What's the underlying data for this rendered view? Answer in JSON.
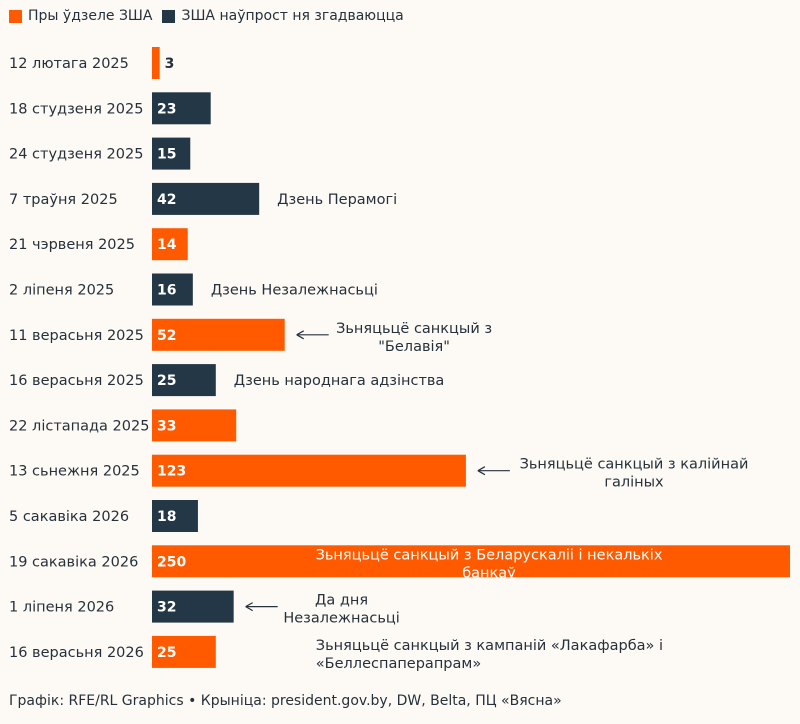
{
  "legend": [
    {
      "label": "Пры ўдзеле ЗША",
      "color": "#ff5a00"
    },
    {
      "label": "ЗША наўпрост ня згадваюцца",
      "color": "#243746"
    }
  ],
  "footer": "Графік: RFE/RL Graphics • Крыніца: president.gov.by, DW, Belta, ПЦ «Вясна»",
  "colors": {
    "us": "#ff5a00",
    "no_us": "#243746"
  },
  "chart_data": {
    "type": "bar",
    "orientation": "horizontal",
    "categories": [
      "12 лютага 2025",
      "18 студзеня 2025",
      "24 студзеня 2025",
      "7 траўня 2025",
      "21 чэрвеня 2025",
      "2 ліпеня 2025",
      "11 верасьня 2025",
      "16 верасьня 2025",
      "22 лістапада 2025",
      "13 сьнежня 2025",
      "5 сакавіка 2026",
      "19 сакавіка 2026",
      "1 ліпеня 2026",
      "16 верасьня 2026"
    ],
    "values": [
      3,
      23,
      15,
      42,
      14,
      16,
      52,
      25,
      33,
      123,
      18,
      250,
      32,
      25
    ],
    "groups": [
      "us",
      "no_us",
      "no_us",
      "no_us",
      "us",
      "no_us",
      "us",
      "no_us",
      "us",
      "us",
      "no_us",
      "us",
      "no_us",
      "us"
    ],
    "annotations": [
      {
        "index": 3,
        "lines": [
          "Дзень Перамогі"
        ],
        "arrow": false,
        "align": "left"
      },
      {
        "index": 5,
        "lines": [
          "Дзень Незалежнасьці"
        ],
        "arrow": false,
        "align": "left"
      },
      {
        "index": 6,
        "lines": [
          "Зьняцьцё санкцый з",
          "\"Белавія\""
        ],
        "arrow": true,
        "align": "center"
      },
      {
        "index": 7,
        "lines": [
          "Дзень народнага адзінства"
        ],
        "arrow": false,
        "align": "left"
      },
      {
        "index": 9,
        "lines": [
          "Зьняцьцё санкцый з калійнай",
          "галіных"
        ],
        "arrow": true,
        "align": "center"
      },
      {
        "index": 11,
        "lines": [
          "Зьняцьцё санкцый з Беларускаліі і некалькіх",
          "банкаў"
        ],
        "arrow": false,
        "align": "center",
        "inside": true
      },
      {
        "index": 12,
        "lines": [
          "Да дня",
          "Незалежнасьці"
        ],
        "arrow": true,
        "align": "center"
      },
      {
        "index": 13,
        "lines": [
          "Зьняцьцё санкцый з кампаній «Лакафарба» і",
          "«Беллеспаперапрам»"
        ],
        "arrow": false,
        "align": "left"
      }
    ],
    "xlim": [
      0,
      250
    ],
    "legend_position": "top-left",
    "grid": false
  }
}
